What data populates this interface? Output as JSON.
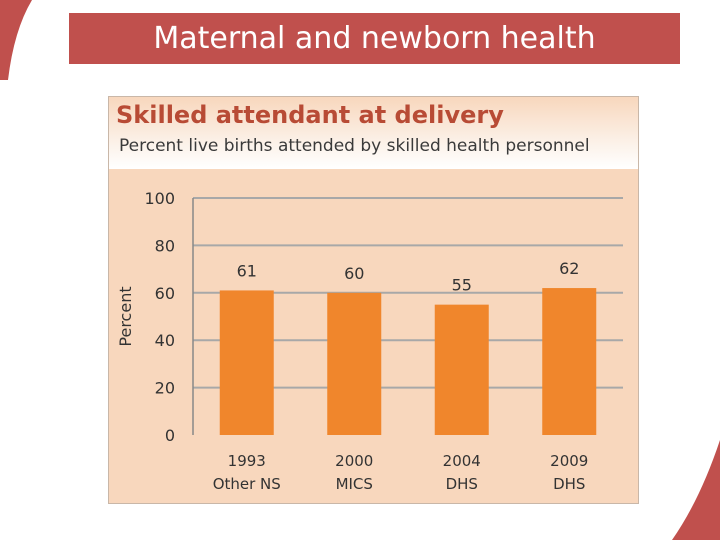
{
  "slide": {
    "title": "Maternal and newborn health"
  },
  "colors": {
    "banner": "#c0504d",
    "panel": "#f8d7bd",
    "bar": "#f0862c",
    "title": "#b84b35",
    "grid": "#a8a8a8"
  },
  "chart_data": {
    "type": "bar",
    "title": "Skilled attendant at delivery",
    "subtitle": "Percent live births attended by skilled health personnel",
    "xlabel": "",
    "ylabel": "Percent",
    "ylim": [
      0,
      100
    ],
    "yticks": [
      0,
      20,
      40,
      60,
      80,
      100
    ],
    "grid": true,
    "categories": [
      [
        "1993",
        "Other NS"
      ],
      [
        "2000",
        "MICS"
      ],
      [
        "2004",
        "DHS"
      ],
      [
        "2009",
        "DHS"
      ]
    ],
    "values": [
      61,
      60,
      55,
      62
    ],
    "data_labels": [
      "61",
      "60",
      "55",
      "62"
    ]
  }
}
